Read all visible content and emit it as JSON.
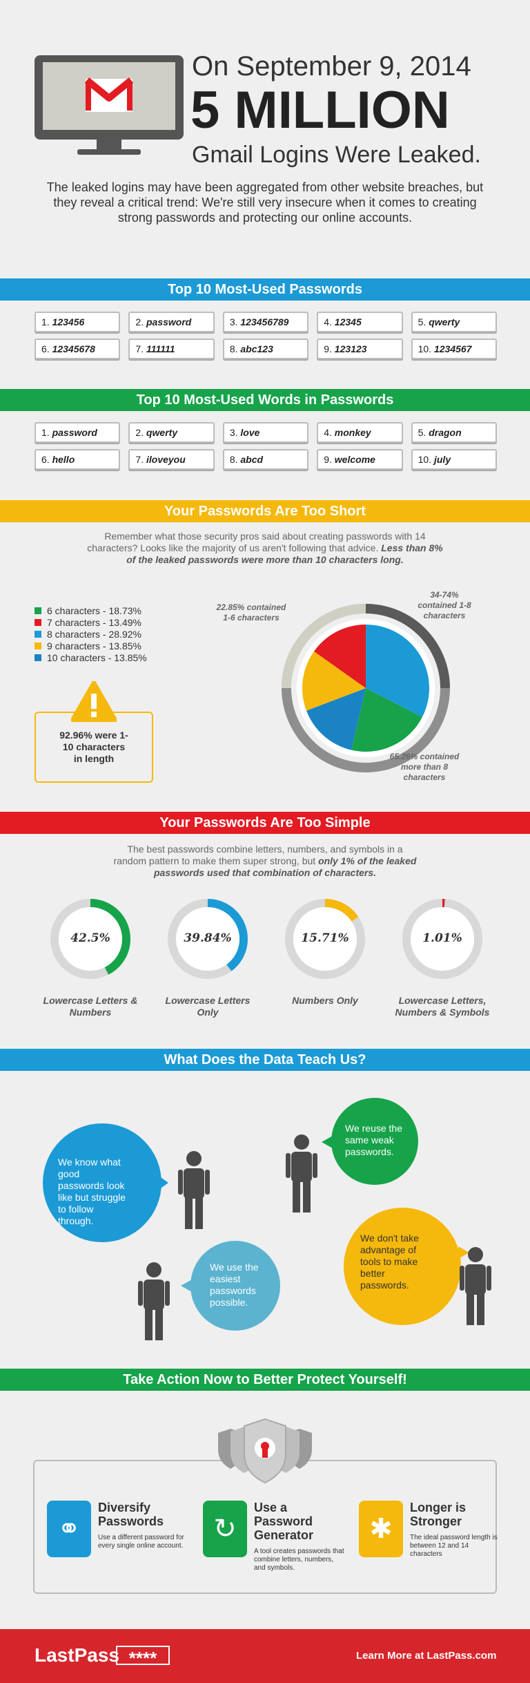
{
  "header": {
    "date_line": "On September 9, 2014",
    "big_line": "5 MILLION",
    "sub_line": "Gmail Logins Were Leaked.",
    "intro": "The leaked logins may have been aggregated from other website breaches, but they reveal a critical trend: We're still very insecure when it comes to creating strong passwords and protecting our online accounts."
  },
  "passwords": {
    "title": "Top 10 Most-Used Passwords",
    "items": [
      "1. 123456",
      "2. password",
      "3. 123456789",
      "4. 12345",
      "5. qwerty",
      "6. 12345678",
      "7. 111111",
      "8. abc123",
      "9. 123123",
      "10. 1234567"
    ]
  },
  "words": {
    "title": "Top 10 Most-Used Words in Passwords",
    "items": [
      "1. password",
      "2. qwerty",
      "3. love",
      "4. monkey",
      "5. dragon",
      "6. hello",
      "7. iloveyou",
      "8. abcd",
      "9. welcome",
      "10. july"
    ]
  },
  "short": {
    "title": "Your Passwords Are Too Short",
    "para_normal": "Remember what those security pros said about creating passwords with 14 characters? Looks like the majority of us aren't following that advice.",
    "para_bold": "Less than 8% of the leaked passwords were more than 10 characters long.",
    "legend": [
      {
        "label": "6 characters - 18.73%",
        "color": "#16a34a"
      },
      {
        "label": "7 characters - 13.49%",
        "color": "#e31b23"
      },
      {
        "label": "8 characters - 28.92%",
        "color": "#1b9ad6"
      },
      {
        "label": "9 characters - 13.85%",
        "color": "#f5b80c"
      },
      {
        "label": "10 characters - 13.85%",
        "color": "#1a83c4"
      }
    ],
    "warning": "92.96% were 1-10 characters in length",
    "callout_left": "22.85% contained 1-6 characters",
    "callout_right": "34-74% contained 1-8 characters",
    "callout_bottom": "65.26% contained more than 8 characters"
  },
  "chart_data": {
    "type": "pie",
    "title": "",
    "slices": [
      {
        "label": "8 characters",
        "value": 28.92,
        "color": "#1b9ad6"
      },
      {
        "label": "6 characters",
        "value": 18.73,
        "color": "#16a34a"
      },
      {
        "label": "10 characters",
        "value": 13.85,
        "color": "#1a83c4"
      },
      {
        "label": "9 characters",
        "value": 13.85,
        "color": "#f5b80c"
      },
      {
        "label": "7 characters",
        "value": 13.49,
        "color": "#e31b23"
      }
    ]
  },
  "simple": {
    "title": "Your Passwords Are Too Simple",
    "para_normal": "The best passwords combine letters, numbers, and symbols in a random pattern to make them super strong, but",
    "para_bold": "only 1% of the leaked passwords used that combination of characters.",
    "gauges": [
      {
        "value": "42.5%",
        "fraction": 0.425,
        "color": "#16a34a",
        "label": "Lowercase Letters & Numbers"
      },
      {
        "value": "39.84%",
        "fraction": 0.3984,
        "color": "#1b9ad6",
        "label": "Lowercase Letters Only"
      },
      {
        "value": "15.71%",
        "fraction": 0.1571,
        "color": "#f5b80c",
        "label": "Numbers Only"
      },
      {
        "value": "1.01%",
        "fraction": 0.0101,
        "color": "#e31b23",
        "label": "Lowercase Letters, Numbers & Symbols"
      }
    ]
  },
  "teach": {
    "title": "What Does the Data Teach Us?",
    "b1": "We know what good passwords look like but struggle to follow through.",
    "b2": "We reuse the same weak passwords.",
    "b3": "We use the easiest passwords possible.",
    "b4": "We don't take advantage of tools to make better passwords."
  },
  "action": {
    "title": "Take Action Now to Better Protect Yourself!",
    "cards": [
      {
        "title": "Diversify Passwords",
        "text": "Use a different password for every single online account.",
        "color": "#1b9ad6"
      },
      {
        "title": "Use a Password Generator",
        "text": "A tool creates passwords that combine letters, numbers, and symbols.",
        "color": "#16a34a"
      },
      {
        "title": "Longer is Stronger",
        "text": "The ideal password length is between 12 and 14 characters",
        "color": "#f5b80c"
      }
    ]
  },
  "footer": {
    "brand": "LastPass",
    "stars": "****",
    "cta": "Learn More at LastPass.com"
  },
  "colors": {
    "blue": "#1b9ad6",
    "green": "#16a34a",
    "yellow": "#f5b80c",
    "red": "#e31b23"
  }
}
